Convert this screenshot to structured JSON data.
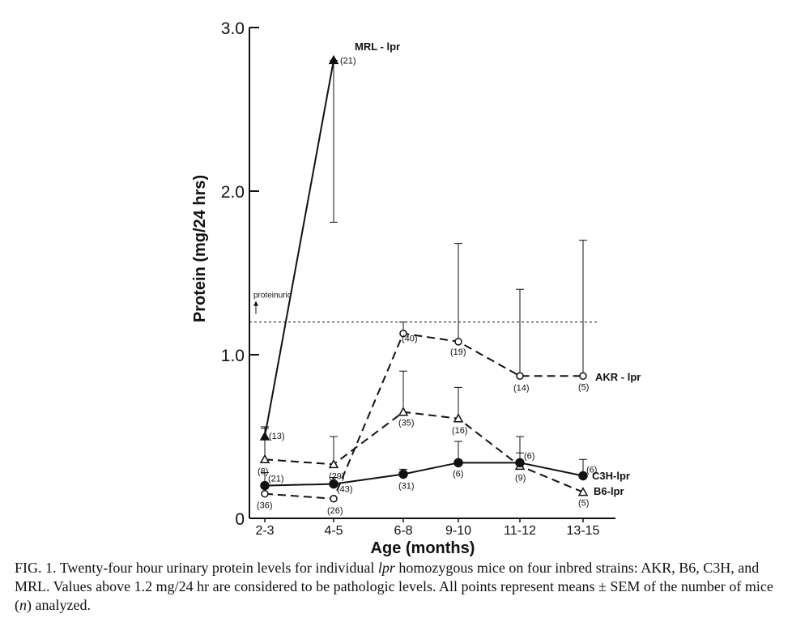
{
  "chart_data": {
    "type": "line",
    "title": "",
    "xlabel": "Age (months)",
    "ylabel": "Protein (mg/24 hrs)",
    "categories": [
      "2-3",
      "4-5",
      "6-8",
      "9-10",
      "11-12",
      "13-15"
    ],
    "ylim": [
      0,
      3.0
    ],
    "y_ticks": [
      0,
      1.0,
      2.0,
      3.0
    ],
    "y_tick_labels": [
      "0",
      "1.0",
      "2.0",
      "3.0"
    ],
    "threshold": {
      "value": 1.2,
      "label": "proteinuric"
    },
    "series": [
      {
        "name": "MRL-lpr",
        "label": "MRL - lpr",
        "marker": "filled-triangle",
        "line": "solid",
        "points": [
          {
            "x": "2-3",
            "y": 0.5,
            "err_up": 0.56,
            "err_low": null,
            "n": "(13)"
          },
          {
            "x": "4-5",
            "y": 2.8,
            "err_up": 2.8,
            "err_low": 1.81,
            "n": "(21)"
          }
        ]
      },
      {
        "name": "AKR-lpr",
        "label": "AKR - lpr",
        "marker": "open-circle",
        "line": "dashed",
        "points": [
          {
            "x": "2-3",
            "y": 0.15,
            "err_up": null,
            "err_low": null,
            "n": "(36)"
          },
          {
            "x": "4-5",
            "y": 0.12,
            "err_up": null,
            "err_low": null,
            "n": "(26)"
          },
          {
            "x": "6-8",
            "y": 1.13,
            "err_up": 1.2,
            "err_low": null,
            "n": "(40)"
          },
          {
            "x": "9-10",
            "y": 1.08,
            "err_up": 1.68,
            "err_low": null,
            "n": "(19)"
          },
          {
            "x": "11-12",
            "y": 0.87,
            "err_up": 1.4,
            "err_low": null,
            "n": "(14)"
          },
          {
            "x": "13-15",
            "y": 0.87,
            "err_up": 1.7,
            "err_low": null,
            "n": "(5)"
          }
        ]
      },
      {
        "name": "B6-lpr",
        "label": "B6-lpr",
        "marker": "open-triangle",
        "line": "dashed",
        "points": [
          {
            "x": "2-3",
            "y": 0.36,
            "err_up": 0.55,
            "err_low": null,
            "n": "(8)"
          },
          {
            "x": "4-5",
            "y": 0.33,
            "err_up": 0.5,
            "err_low": null,
            "n": "(29)"
          },
          {
            "x": "6-8",
            "y": 0.65,
            "err_up": 0.9,
            "err_low": null,
            "n": "(35)"
          },
          {
            "x": "9-10",
            "y": 0.61,
            "err_up": 0.8,
            "err_low": null,
            "n": "(16)"
          },
          {
            "x": "11-12",
            "y": 0.32,
            "err_up": 0.4,
            "err_low": null,
            "n": "(9)"
          },
          {
            "x": "13-15",
            "y": 0.16,
            "err_up": null,
            "err_low": null,
            "n": "(5)"
          }
        ]
      },
      {
        "name": "C3H-lpr",
        "label": "C3H-lpr",
        "marker": "filled-circle",
        "line": "solid",
        "points": [
          {
            "x": "2-3",
            "y": 0.2,
            "err_up": 0.28,
            "err_low": null,
            "n": "(21)"
          },
          {
            "x": "4-5",
            "y": 0.21,
            "err_up": 0.25,
            "err_low": null,
            "n": "(43)"
          },
          {
            "x": "6-8",
            "y": 0.27,
            "err_up": 0.3,
            "err_low": null,
            "n": "(31)"
          },
          {
            "x": "9-10",
            "y": 0.34,
            "err_up": 0.47,
            "err_low": null,
            "n": "(6)"
          },
          {
            "x": "11-12",
            "y": 0.34,
            "err_up": 0.5,
            "err_low": null,
            "n": "(6)"
          },
          {
            "x": "13-15",
            "y": 0.26,
            "err_up": 0.36,
            "err_low": null,
            "n": "(6)"
          }
        ]
      }
    ]
  },
  "caption": {
    "prefix": "FIG. 1.",
    "text_1": " Twenty-four hour urinary protein levels for individual ",
    "italic_1": "lpr",
    "text_2": " homozygous mice on four inbred strains: AKR, B6, C3H, and MRL. Values above 1.2 mg/24 hr are considered to be pathologic levels. All points represent means ± SEM of the number of mice (",
    "italic_2": "n",
    "text_3": ") analyzed."
  }
}
